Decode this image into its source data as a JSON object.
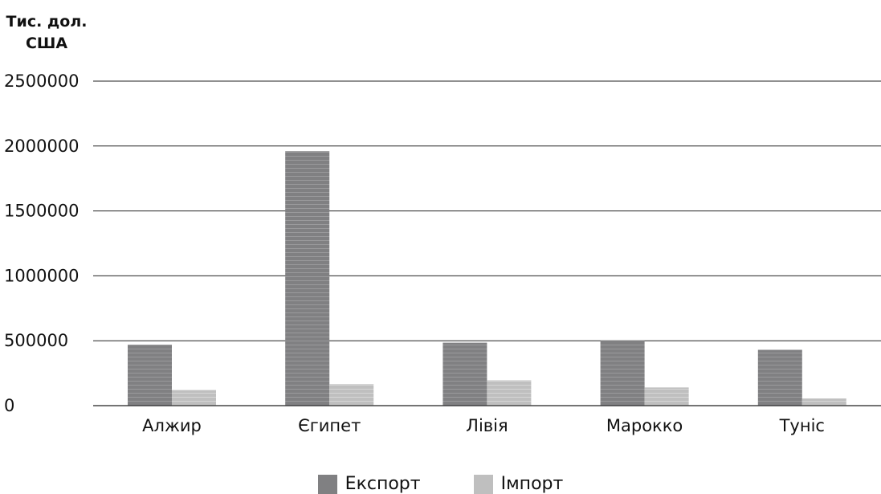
{
  "chart_data": {
    "type": "bar",
    "ylabel_lines": [
      "Тис. дол.",
      "США"
    ],
    "categories": [
      "Алжир",
      "Єгипет",
      "Лівія",
      "Марокко",
      "Туніс"
    ],
    "series": [
      {
        "name": "Експорт",
        "color": "#808082",
        "values": [
          470000,
          1960000,
          485000,
          500000,
          430000
        ]
      },
      {
        "name": "Імпорт",
        "color": "#bfbfbf",
        "values": [
          120000,
          165000,
          195000,
          140000,
          55000
        ]
      }
    ],
    "ylim": [
      0,
      2500000
    ],
    "yticks": [
      0,
      500000,
      1000000,
      1500000,
      2000000,
      2500000
    ],
    "ytick_labels": [
      "0",
      "500000",
      "1000000",
      "1500000",
      "2000000",
      "2500000"
    ],
    "grid": true,
    "legend_position": "bottom"
  }
}
